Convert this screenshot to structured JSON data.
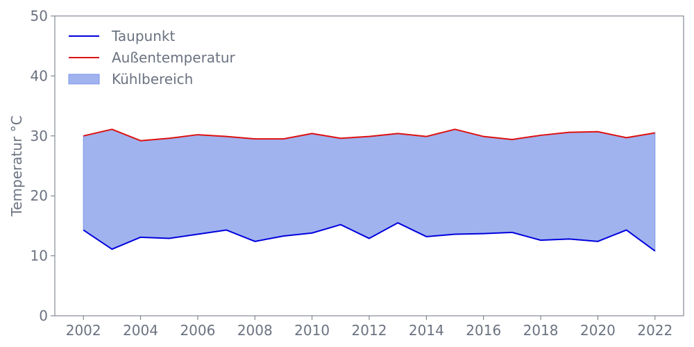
{
  "chart_data": {
    "type": "area",
    "title": "",
    "xlabel": "",
    "ylabel": "Temperatur °C",
    "xlim": [
      2001,
      2023
    ],
    "ylim": [
      0,
      50
    ],
    "x_ticks": [
      2002,
      2004,
      2006,
      2008,
      2010,
      2012,
      2014,
      2016,
      2018,
      2020,
      2022
    ],
    "y_ticks": [
      0,
      10,
      20,
      30,
      40,
      50
    ],
    "grid": false,
    "legend_position": "top-left",
    "x": [
      2002,
      2003,
      2004,
      2005,
      2006,
      2007,
      2008,
      2009,
      2010,
      2011,
      2012,
      2013,
      2014,
      2015,
      2016,
      2017,
      2018,
      2019,
      2020,
      2021,
      2022
    ],
    "series": [
      {
        "name": "Taupunkt",
        "type": "line",
        "color": "#0000dd",
        "values": [
          14.3,
          11.1,
          13.1,
          12.9,
          13.6,
          14.3,
          12.4,
          13.3,
          13.8,
          15.2,
          12.9,
          15.5,
          13.2,
          13.6,
          13.7,
          13.9,
          12.6,
          12.8,
          12.4,
          14.3,
          10.8
        ]
      },
      {
        "name": "Außentemperatur",
        "type": "line",
        "color": "#dd1111",
        "values": [
          30.0,
          31.1,
          29.2,
          29.6,
          30.2,
          29.9,
          29.5,
          29.5,
          30.4,
          29.6,
          29.9,
          30.4,
          29.9,
          31.1,
          29.9,
          29.4,
          30.1,
          30.6,
          30.7,
          29.7,
          30.5
        ]
      }
    ],
    "fill": {
      "name": "Kühlbereich",
      "color": "#7b96e8",
      "between": [
        "Taupunkt",
        "Außentemperatur"
      ]
    }
  }
}
